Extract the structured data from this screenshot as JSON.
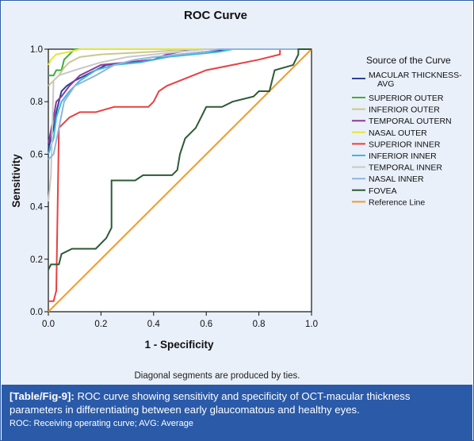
{
  "chart_data": {
    "type": "line",
    "title": "ROC Curve",
    "xlabel": "1 - Specificity",
    "ylabel": "Sensitivity",
    "xlim": [
      0,
      1
    ],
    "ylim": [
      0,
      1
    ],
    "x_ticks": [
      "0.0",
      "0.2",
      "0.4",
      "0.6",
      "0.8",
      "1.0"
    ],
    "y_ticks": [
      "0.0",
      "0.2",
      "0.4",
      "0.6",
      "0.8",
      "1.0"
    ],
    "grid": false,
    "legend_title": "Source of the Curve",
    "legend_position": "right",
    "footnote": "Diagonal segments are produced by ties.",
    "series": [
      {
        "name": "MACULAR THICKNESS-AVG",
        "color": "#2f3f99",
        "points": [
          [
            0,
            0.62
          ],
          [
            0.02,
            0.7
          ],
          [
            0.03,
            0.76
          ],
          [
            0.04,
            0.8
          ],
          [
            0.05,
            0.84
          ],
          [
            0.07,
            0.86
          ],
          [
            0.1,
            0.88
          ],
          [
            0.14,
            0.9
          ],
          [
            0.18,
            0.92
          ],
          [
            0.22,
            0.94
          ],
          [
            0.3,
            0.95
          ],
          [
            0.4,
            0.96
          ],
          [
            0.5,
            0.98
          ],
          [
            0.6,
            0.99
          ],
          [
            0.7,
            1
          ],
          [
            1,
            1
          ]
        ]
      },
      {
        "name": "SUPERIOR OUTER",
        "color": "#3fae3a",
        "points": [
          [
            0,
            0.9
          ],
          [
            0.02,
            0.9
          ],
          [
            0.03,
            0.92
          ],
          [
            0.05,
            0.92
          ],
          [
            0.06,
            0.96
          ],
          [
            0.08,
            0.98
          ],
          [
            0.1,
            1
          ],
          [
            1,
            1
          ]
        ]
      },
      {
        "name": "INFERIOR OUTER",
        "color": "#c8c890",
        "points": [
          [
            0,
            0.86
          ],
          [
            0.02,
            0.88
          ],
          [
            0.04,
            0.9
          ],
          [
            0.06,
            0.93
          ],
          [
            0.08,
            0.95
          ],
          [
            0.12,
            0.97
          ],
          [
            0.2,
            0.98
          ],
          [
            0.4,
            0.99
          ],
          [
            0.55,
            1
          ],
          [
            1,
            1
          ]
        ]
      },
      {
        "name": "TEMPORAL OUTERN",
        "color": "#8a3a9c",
        "points": [
          [
            0,
            0.64
          ],
          [
            0.02,
            0.74
          ],
          [
            0.03,
            0.8
          ],
          [
            0.05,
            0.82
          ],
          [
            0.08,
            0.86
          ],
          [
            0.12,
            0.9
          ],
          [
            0.16,
            0.92
          ],
          [
            0.2,
            0.94
          ],
          [
            0.3,
            0.95
          ],
          [
            0.4,
            0.96
          ],
          [
            0.45,
            0.98
          ],
          [
            0.55,
            1
          ],
          [
            1,
            1
          ]
        ]
      },
      {
        "name": "NASAL OUTER",
        "color": "#e6e632",
        "points": [
          [
            0,
            0.94
          ],
          [
            0.01,
            0.96
          ],
          [
            0.03,
            0.98
          ],
          [
            0.08,
            0.99
          ],
          [
            0.12,
            1
          ],
          [
            1,
            1
          ]
        ]
      },
      {
        "name": "SUPERIOR INNER",
        "color": "#e84040",
        "points": [
          [
            0,
            0.04
          ],
          [
            0.02,
            0.04
          ],
          [
            0.03,
            0.08
          ],
          [
            0.04,
            0.7
          ],
          [
            0.06,
            0.72
          ],
          [
            0.08,
            0.74
          ],
          [
            0.12,
            0.76
          ],
          [
            0.18,
            0.76
          ],
          [
            0.25,
            0.78
          ],
          [
            0.38,
            0.78
          ],
          [
            0.4,
            0.8
          ],
          [
            0.42,
            0.84
          ],
          [
            0.45,
            0.86
          ],
          [
            0.5,
            0.88
          ],
          [
            0.55,
            0.9
          ],
          [
            0.6,
            0.92
          ],
          [
            0.7,
            0.94
          ],
          [
            0.8,
            0.96
          ],
          [
            0.88,
            0.98
          ],
          [
            0.88,
            1
          ],
          [
            1,
            1
          ]
        ]
      },
      {
        "name": "INFERIOR INNER",
        "color": "#3fb8d8",
        "points": [
          [
            0,
            0.6
          ],
          [
            0.02,
            0.66
          ],
          [
            0.03,
            0.74
          ],
          [
            0.05,
            0.8
          ],
          [
            0.08,
            0.84
          ],
          [
            0.12,
            0.88
          ],
          [
            0.18,
            0.92
          ],
          [
            0.25,
            0.94
          ],
          [
            0.35,
            0.95
          ],
          [
            0.45,
            0.97
          ],
          [
            0.55,
            0.98
          ],
          [
            0.65,
            0.99
          ],
          [
            0.7,
            1
          ],
          [
            1,
            1
          ]
        ]
      },
      {
        "name": "TEMPORAL INNER",
        "color": "#c8c8c8",
        "points": [
          [
            0,
            0.42
          ],
          [
            0.01,
            0.52
          ],
          [
            0.02,
            0.88
          ],
          [
            0.04,
            0.9
          ],
          [
            0.1,
            0.92
          ],
          [
            0.2,
            0.95
          ],
          [
            0.3,
            0.97
          ],
          [
            0.4,
            0.98
          ],
          [
            0.5,
            0.99
          ],
          [
            0.6,
            1
          ],
          [
            1,
            1
          ]
        ]
      },
      {
        "name": "NASAL INNER",
        "color": "#8fb4e0",
        "points": [
          [
            0,
            0.58
          ],
          [
            0.02,
            0.6
          ],
          [
            0.04,
            0.7
          ],
          [
            0.06,
            0.8
          ],
          [
            0.1,
            0.86
          ],
          [
            0.18,
            0.9
          ],
          [
            0.25,
            0.94
          ],
          [
            0.33,
            0.96
          ],
          [
            0.4,
            0.97
          ],
          [
            0.5,
            0.98
          ],
          [
            0.6,
            0.99
          ],
          [
            0.65,
            1
          ],
          [
            1,
            1
          ]
        ]
      },
      {
        "name": "FOVEA",
        "color": "#2d5a36",
        "points": [
          [
            0,
            0.16
          ],
          [
            0.01,
            0.18
          ],
          [
            0.04,
            0.18
          ],
          [
            0.05,
            0.22
          ],
          [
            0.09,
            0.24
          ],
          [
            0.18,
            0.24
          ],
          [
            0.2,
            0.26
          ],
          [
            0.22,
            0.28
          ],
          [
            0.24,
            0.32
          ],
          [
            0.24,
            0.5
          ],
          [
            0.33,
            0.5
          ],
          [
            0.36,
            0.52
          ],
          [
            0.38,
            0.52
          ],
          [
            0.47,
            0.52
          ],
          [
            0.49,
            0.54
          ],
          [
            0.5,
            0.6
          ],
          [
            0.52,
            0.66
          ],
          [
            0.56,
            0.7
          ],
          [
            0.58,
            0.74
          ],
          [
            0.6,
            0.78
          ],
          [
            0.66,
            0.78
          ],
          [
            0.7,
            0.8
          ],
          [
            0.78,
            0.82
          ],
          [
            0.8,
            0.84
          ],
          [
            0.84,
            0.84
          ],
          [
            0.86,
            0.92
          ],
          [
            0.93,
            0.94
          ],
          [
            0.95,
            0.98
          ],
          [
            0.95,
            1
          ],
          [
            1,
            1
          ]
        ]
      },
      {
        "name": "Reference Line",
        "color": "#f39a2c",
        "points": [
          [
            0,
            0
          ],
          [
            1,
            1
          ]
        ]
      }
    ]
  },
  "caption": {
    "label": "[Table/Fig-9]:",
    "line1": " ROC curve showing sensitivity and specificity of OCT-macular thickness",
    "line2": "parameters in differentiating between early glaucomatous and healthy eyes.",
    "note": "ROC: Receiving operating curve; AVG: Average"
  }
}
